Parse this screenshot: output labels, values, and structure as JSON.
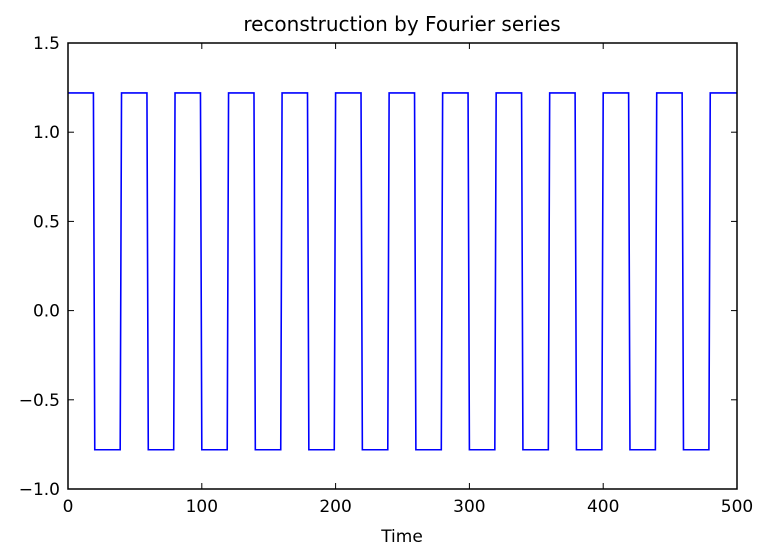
{
  "chart_data": {
    "type": "line",
    "title": "reconstruction by Fourier series",
    "xlabel": "Time",
    "ylabel": "",
    "xlim": [
      0,
      500
    ],
    "ylim": [
      -1.0,
      1.5
    ],
    "x_ticks": [
      0,
      100,
      200,
      300,
      400,
      500
    ],
    "x_tick_labels": [
      "0",
      "100",
      "200",
      "300",
      "400",
      "500"
    ],
    "y_ticks": [
      -1.0,
      -0.5,
      0.0,
      0.5,
      1.0,
      1.5
    ],
    "y_tick_labels": [
      "−1.0",
      "−0.5",
      "0.0",
      "0.5",
      "1.0",
      "1.5"
    ],
    "grid": false,
    "legend": "none",
    "series": [
      {
        "color": "#0000ff",
        "x": [
          0,
          19,
          20,
          39,
          40,
          59,
          60,
          79,
          80,
          99,
          100,
          119,
          120,
          139,
          140,
          159,
          160,
          179,
          180,
          199,
          200,
          219,
          220,
          239,
          240,
          259,
          260,
          279,
          280,
          299,
          300,
          319,
          320,
          339,
          340,
          359,
          360,
          379,
          380,
          399,
          400,
          419,
          420,
          439,
          440,
          459,
          460,
          479,
          480,
          500
        ],
        "y": [
          1.22,
          1.22,
          -0.78,
          -0.78,
          1.22,
          1.22,
          -0.78,
          -0.78,
          1.22,
          1.22,
          -0.78,
          -0.78,
          1.22,
          1.22,
          -0.78,
          -0.78,
          1.22,
          1.22,
          -0.78,
          -0.78,
          1.22,
          1.22,
          -0.78,
          -0.78,
          1.22,
          1.22,
          -0.78,
          -0.78,
          1.22,
          1.22,
          -0.78,
          -0.78,
          1.22,
          1.22,
          -0.78,
          -0.78,
          1.22,
          1.22,
          -0.78,
          -0.78,
          1.22,
          1.22,
          -0.78,
          -0.78,
          1.22,
          1.22,
          -0.78,
          -0.78,
          1.22,
          1.22
        ]
      }
    ]
  }
}
